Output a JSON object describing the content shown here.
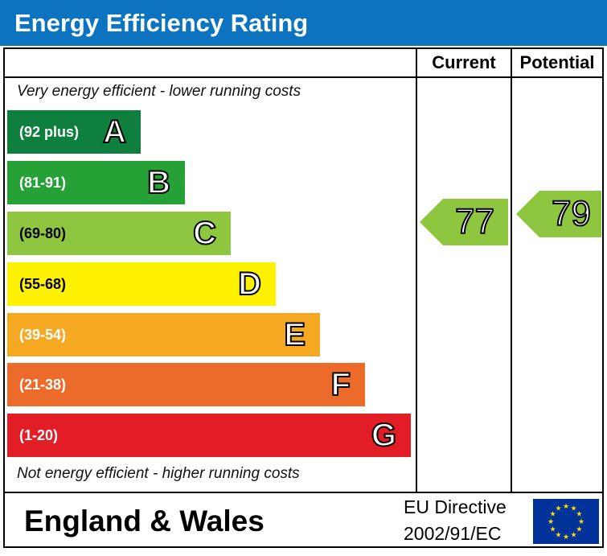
{
  "title": "Energy Efficiency Rating",
  "columns": {
    "current": "Current",
    "potential": "Potential"
  },
  "top_note": "Very energy efficient - lower running costs",
  "bottom_note": "Not energy efficient - higher running costs",
  "footer": {
    "region": "England & Wales",
    "directive_line1": "EU Directive",
    "directive_line2": "2002/91/EC"
  },
  "colors": {
    "header_bg": "#0b73c0",
    "A": "#0f7f3d",
    "B": "#25a136",
    "C": "#8ec63f",
    "D": "#fff200",
    "E": "#f5a821",
    "F": "#ec6a2a",
    "G": "#e31d25",
    "rating_arrow": "#8ec63f",
    "eu_flag": "#003399",
    "eu_stars": "#ffdd00"
  },
  "chart_data": {
    "type": "bar",
    "bands": [
      {
        "range": "(92 plus)",
        "letter": "A"
      },
      {
        "range": "(81-91)",
        "letter": "B"
      },
      {
        "range": "(69-80)",
        "letter": "C"
      },
      {
        "range": "(55-68)",
        "letter": "D"
      },
      {
        "range": "(39-54)",
        "letter": "E"
      },
      {
        "range": "(21-38)",
        "letter": "F"
      },
      {
        "range": "(1-20)",
        "letter": "G"
      }
    ],
    "current": 77,
    "potential": 79
  }
}
